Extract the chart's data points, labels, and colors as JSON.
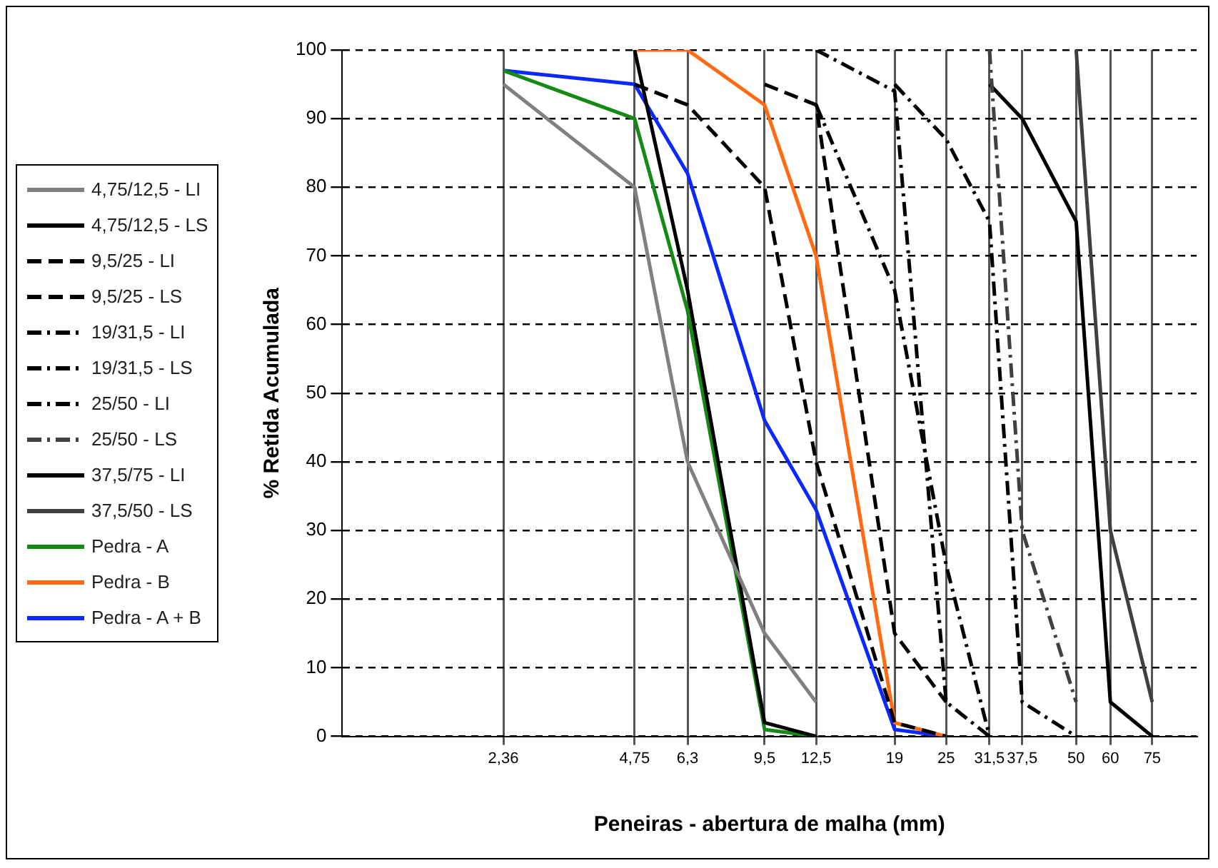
{
  "chart_data": {
    "type": "line",
    "xlabel": "Peneiras - abertura de malha (mm)",
    "ylabel": "% Retida Acumulada",
    "log": "x",
    "grid": true,
    "legend": "left",
    "marker": "none",
    "xlim": [
      1,
      95
    ],
    "xticks": [
      {
        "value": 2.36,
        "label": "2,36"
      },
      {
        "value": 4.75,
        "label": "4,75"
      },
      {
        "value": 6.3,
        "label": "6,3"
      },
      {
        "value": 9.5,
        "label": "9,5"
      },
      {
        "value": 12.5,
        "label": "12,5"
      },
      19,
      25,
      {
        "value": 31.5,
        "label": "31,5"
      },
      {
        "value": 37.5,
        "label": "37,5"
      },
      50,
      60,
      75
    ],
    "ylim": [
      0,
      100
    ],
    "yticks": [
      0,
      10,
      20,
      30,
      40,
      50,
      60,
      70,
      80,
      90,
      100
    ],
    "series": [
      {
        "name": "4,75/12,5 - LI",
        "color": "#808080",
        "line_style": "solid",
        "x": [
          2.36,
          4.75,
          6.3,
          9.5,
          12.5
        ],
        "values": [
          95,
          80,
          40,
          15,
          5
        ]
      },
      {
        "name": "4,75/12,5 - LS",
        "color": "#000000",
        "line_style": "solid",
        "x": [
          4.75,
          6.3,
          9.5,
          12.5
        ],
        "values": [
          100,
          65,
          2,
          0
        ]
      },
      {
        "name": "9,5/25 - LI",
        "color": "#000000",
        "line_style": "dashed",
        "x": [
          4.75,
          6.3,
          9.5,
          12.5,
          19,
          25
        ],
        "values": [
          95,
          92,
          80,
          40,
          2,
          0
        ]
      },
      {
        "name": "9,5/25 - LS",
        "color": "#000000",
        "line_style": "dashed",
        "x": [
          9.5,
          12.5,
          19,
          25
        ],
        "values": [
          95,
          92,
          15,
          5
        ]
      },
      {
        "name": "19/31,5 - LI",
        "color": "#000000",
        "line_style": "dashdot",
        "x": [
          12.5,
          19,
          25,
          31.5
        ],
        "values": [
          100,
          94,
          5,
          0
        ]
      },
      {
        "name": "19/31,5 - LS",
        "color": "#000000",
        "line_style": "dashdot",
        "x": [
          12.5,
          19,
          25,
          31.5
        ],
        "values": [
          92,
          65,
          25,
          0
        ]
      },
      {
        "name": "25/50 - LI",
        "color": "#000000",
        "line_style": "dashdot",
        "x": [
          19,
          25,
          31.5,
          37.5,
          50
        ],
        "values": [
          95,
          87,
          75,
          5,
          0
        ]
      },
      {
        "name": "25/50 - LS",
        "color": "#404040",
        "line_style": "dashdot",
        "x": [
          31.5,
          37.5,
          50
        ],
        "values": [
          100,
          30,
          5
        ]
      },
      {
        "name": "37,5/75 - LI",
        "color": "#000000",
        "line_style": "solid",
        "x": [
          31.5,
          37.5,
          50,
          60,
          75
        ],
        "values": [
          95,
          90,
          75,
          5,
          0
        ]
      },
      {
        "name": "37,5/50 - LS",
        "color": "#404040",
        "line_style": "solid",
        "x": [
          50,
          60,
          75
        ],
        "values": [
          100,
          30,
          5
        ]
      },
      {
        "name": "Pedra - A",
        "color": "#138a13",
        "line_style": "solid",
        "x": [
          2.36,
          4.75,
          6.3,
          9.5,
          12.5
        ],
        "values": [
          97,
          90,
          62,
          1,
          0
        ]
      },
      {
        "name": "Pedra - B",
        "color": "#ff6a13",
        "line_style": "solid",
        "x": [
          4.75,
          6.3,
          9.5,
          12.5,
          19,
          25
        ],
        "values": [
          100,
          100,
          92,
          70,
          2,
          0
        ]
      },
      {
        "name": "Pedra - A + B",
        "color": "#0a28ff",
        "line_style": "solid",
        "x": [
          2.36,
          4.75,
          6.3,
          9.5,
          12.5,
          19,
          25
        ],
        "values": [
          97,
          95,
          82,
          46,
          33,
          1,
          0
        ]
      }
    ]
  }
}
